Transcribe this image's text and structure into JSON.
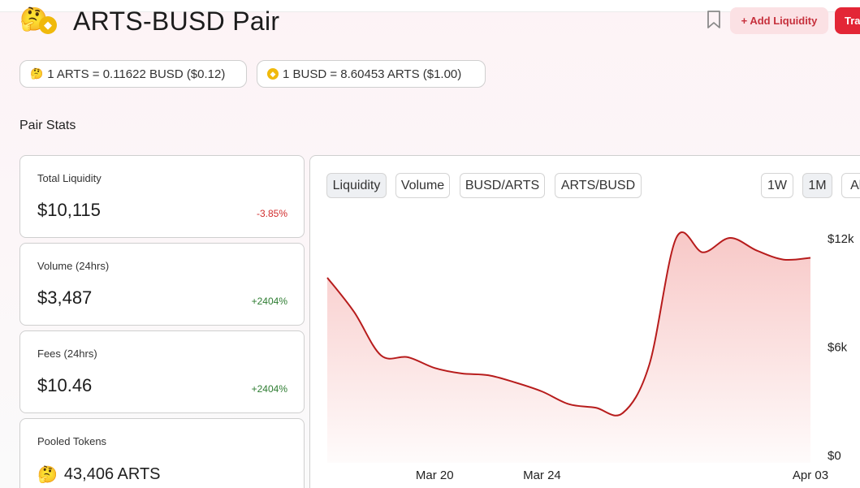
{
  "header": {
    "title": "ARTS-BUSD Pair",
    "add_liquidity_label": "+ Add Liquidity",
    "trade_label": "Trade",
    "token0_emoji": "🤔",
    "token1_icon": "busd-coin-icon"
  },
  "prices": {
    "token0_price": "1 ARTS = 0.11622 BUSD ($0.12)",
    "token1_price": "1 BUSD = 8.60453 ARTS ($1.00)"
  },
  "pair_stats": {
    "heading": "Pair Stats",
    "total_liquidity": {
      "label": "Total Liquidity",
      "value": "$10,115",
      "change": "-3.85%"
    },
    "volume": {
      "label": "Volume (24hrs)",
      "value": "$3,487",
      "change": "+2404%"
    },
    "fees": {
      "label": "Fees (24hrs)",
      "value": "$10.46",
      "change": "+2404%"
    },
    "pooled": {
      "label": "Pooled Tokens",
      "value": "43,406 ARTS",
      "emoji": "🤔"
    }
  },
  "chart_tabs": {
    "liquidity": "Liquidity",
    "volume": "Volume",
    "busd_arts": "BUSD/ARTS",
    "arts_busd": "ARTS/BUSD",
    "range_1w": "1W",
    "range_1m": "1M",
    "range_all": "All",
    "active_tab": "Liquidity",
    "active_range": "1M"
  },
  "colors": {
    "accent": "#e32636",
    "line": "#b71c1c",
    "negative": "#d12d2d",
    "positive": "#2e7d32"
  },
  "chart_data": {
    "type": "area",
    "title": "",
    "xlabel": "",
    "ylabel": "",
    "x_tick_labels": [
      "Mar 20",
      "Mar 24",
      "Apr 03"
    ],
    "y_tick_labels": [
      "$12k",
      "$6k",
      "$0"
    ],
    "ylim": [
      0,
      12000
    ],
    "y_ticks": [
      12000,
      6000,
      0
    ],
    "x": [
      "Mar 16",
      "Mar 17",
      "Mar 18",
      "Mar 19",
      "Mar 20",
      "Mar 21",
      "Mar 22",
      "Mar 23",
      "Mar 24",
      "Mar 25",
      "Mar 26",
      "Mar 27",
      "Mar 28",
      "Mar 29",
      "Mar 30",
      "Mar 31",
      "Apr 01",
      "Apr 02",
      "Apr 03"
    ],
    "series": [
      {
        "values": [
          9800,
          7900,
          5500,
          5400,
          4800,
          4500,
          4400,
          4000,
          3500,
          2800,
          2600,
          2300,
          5000,
          12000,
          11200,
          12000,
          11300,
          10800,
          10900
        ]
      }
    ],
    "grid": false,
    "legend": "none"
  }
}
